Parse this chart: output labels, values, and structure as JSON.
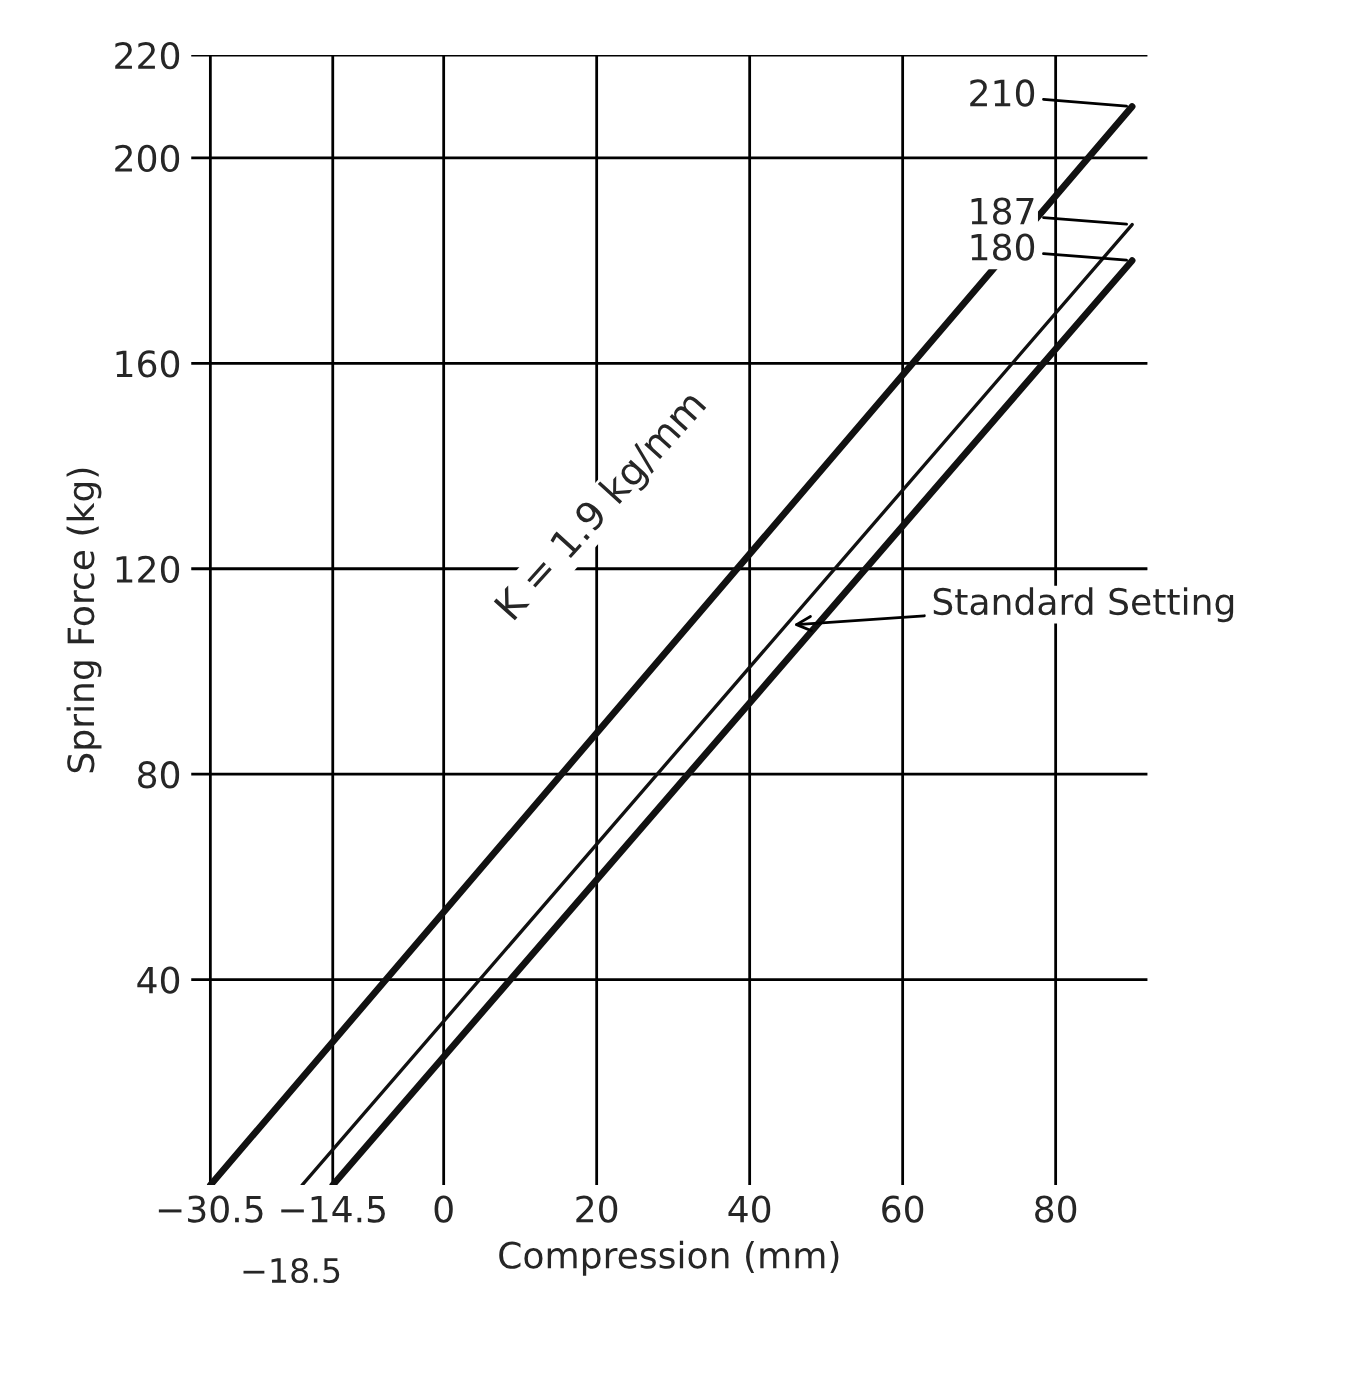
{
  "chart_data": {
    "type": "line",
    "xlabel": "Compression (mm)",
    "ylabel": "Spring Force (kg)",
    "series": [
      {
        "color": "#111111",
        "x": [
          -30.5,
          90
        ],
        "values": [
          0,
          210
        ]
      },
      {
        "color": "#111111",
        "x": [
          -18.5,
          90
        ],
        "values": [
          0,
          187
        ],
        "line_style": "solid"
      },
      {
        "color": "#111111",
        "x": [
          -14.5,
          90
        ],
        "values": [
          0,
          180
        ]
      }
    ],
    "xlim": [
      -33,
      92
    ],
    "xticks": [
      -30.5,
      -14.5,
      0,
      20,
      40,
      60,
      80
    ],
    "ylim": [
      0,
      220
    ],
    "yticks": [
      40,
      80,
      120,
      160,
      200,
      220
    ],
    "grid": true,
    "legend": false,
    "marker": "none",
    "annotations": [
      {
        "text": "210",
        "x": 90,
        "y": 210
      },
      {
        "text": "187",
        "x": 90,
        "y": 187
      },
      {
        "text": "180",
        "x": 90,
        "y": 180
      },
      {
        "text": "Standard Setting",
        "x": 45,
        "y": 109
      },
      {
        "text": "−18.5",
        "x": -18.5,
        "y": 0
      },
      "K = 1.9 kg/mm"
    ]
  }
}
